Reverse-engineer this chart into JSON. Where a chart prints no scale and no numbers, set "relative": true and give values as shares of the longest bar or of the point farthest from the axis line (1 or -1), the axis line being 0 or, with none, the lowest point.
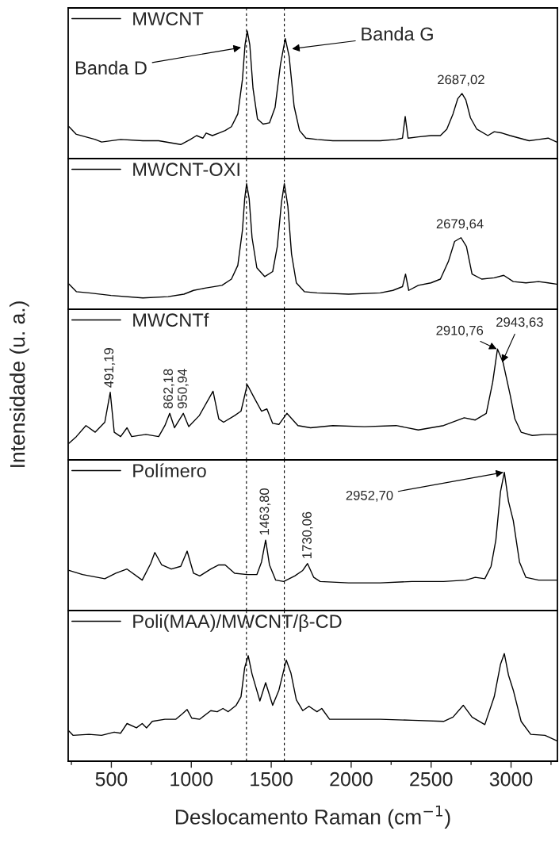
{
  "chart_data": [
    {
      "type": "line",
      "relative": true,
      "legend": "top left",
      "tick_labels": false,
      "xlim": [
        230,
        3290
      ],
      "xticks": [
        {
          "value": 250,
          "label": null
        },
        500,
        {
          "value": 750,
          "label": null
        },
        1000,
        {
          "value": 1250,
          "label": null
        },
        1500,
        {
          "value": 1750,
          "label": null
        },
        2000,
        {
          "value": 2250,
          "label": null
        },
        2500,
        {
          "value": 2750,
          "label": null
        },
        3000,
        {
          "value": 3250,
          "label": null
        }
      ],
      "ref_lines": [
        {
          "axis": "x",
          "value": 1345,
          "line_style": "dashed"
        },
        {
          "axis": "x",
          "value": 1582,
          "line_style": "dashed"
        }
      ],
      "annotations": [
        {
          "text": "Banda D",
          "x": 1311,
          "y": 0.87
        },
        {
          "text": "Banda G",
          "x": 1630,
          "y": 0.86
        },
        {
          "text": "2687,02",
          "x": 2687,
          "y": 0.51
        }
      ],
      "series": [
        {
          "name": "MWCNT",
          "color": "#000000",
          "x": [
            235,
            281,
            399,
            439,
            558,
            697,
            796,
            934,
            994,
            1033,
            1073,
            1093,
            1132,
            1172,
            1212,
            1251,
            1291,
            1320,
            1336,
            1350,
            1366,
            1386,
            1414,
            1449,
            1489,
            1524,
            1558,
            1588,
            1612,
            1643,
            1677,
            1717,
            1786,
            1885,
            1984,
            2083,
            2182,
            2281,
            2321,
            2338,
            2356,
            2420,
            2499,
            2558,
            2598,
            2637,
            2667,
            2693,
            2717,
            2746,
            2786,
            2855,
            2895,
            2944,
            2994,
            3053,
            3113,
            3172,
            3232,
            3285
          ],
          "values": [
            0.25,
            0.19,
            0.15,
            0.13,
            0.15,
            0.14,
            0.14,
            0.11,
            0.15,
            0.18,
            0.16,
            0.2,
            0.18,
            0.2,
            0.22,
            0.25,
            0.35,
            0.62,
            0.89,
            1.0,
            0.89,
            0.55,
            0.31,
            0.27,
            0.28,
            0.4,
            0.74,
            0.94,
            0.8,
            0.41,
            0.22,
            0.16,
            0.15,
            0.14,
            0.14,
            0.14,
            0.14,
            0.15,
            0.16,
            0.33,
            0.16,
            0.17,
            0.18,
            0.18,
            0.23,
            0.35,
            0.47,
            0.51,
            0.46,
            0.32,
            0.23,
            0.18,
            0.21,
            0.2,
            0.18,
            0.16,
            0.14,
            0.15,
            0.16,
            0.13
          ]
        }
      ]
    },
    {
      "type": "line",
      "relative": true,
      "legend": "top left",
      "tick_labels": false,
      "xlim": [
        230,
        3290
      ],
      "xticks": [
        {
          "value": 250,
          "label": null
        },
        500,
        {
          "value": 750,
          "label": null
        },
        1000,
        {
          "value": 1250,
          "label": null
        },
        1500,
        {
          "value": 1750,
          "label": null
        },
        2000,
        {
          "value": 2250,
          "label": null
        },
        2500,
        {
          "value": 2750,
          "label": null
        },
        3000,
        {
          "value": 3250,
          "label": null
        }
      ],
      "ref_lines": [
        {
          "axis": "x",
          "value": 1345,
          "line_style": "dashed"
        },
        {
          "axis": "x",
          "value": 1582,
          "line_style": "dashed"
        }
      ],
      "annotations": [
        {
          "text": "2679,64",
          "x": 2680,
          "y": 0.57
        }
      ],
      "series": [
        {
          "name": "MWCNT-OXI",
          "color": "#000000",
          "x": [
            235,
            281,
            360,
            498,
            697,
            855,
            954,
            1014,
            1093,
            1192,
            1251,
            1291,
            1320,
            1334,
            1346,
            1362,
            1380,
            1410,
            1459,
            1509,
            1538,
            1564,
            1582,
            1604,
            1627,
            1657,
            1707,
            1786,
            1984,
            2182,
            2261,
            2321,
            2340,
            2360,
            2420,
            2499,
            2558,
            2608,
            2647,
            2687,
            2721,
            2756,
            2816,
            2895,
            2954,
            3014,
            3093,
            3172,
            3232,
            3285
          ],
          "values": [
            0.2,
            0.14,
            0.13,
            0.11,
            0.09,
            0.1,
            0.12,
            0.15,
            0.17,
            0.19,
            0.24,
            0.35,
            0.63,
            0.88,
            1.0,
            0.88,
            0.57,
            0.33,
            0.26,
            0.3,
            0.5,
            0.85,
            1.0,
            0.82,
            0.44,
            0.21,
            0.14,
            0.13,
            0.12,
            0.13,
            0.15,
            0.18,
            0.28,
            0.15,
            0.19,
            0.21,
            0.24,
            0.38,
            0.54,
            0.57,
            0.5,
            0.28,
            0.24,
            0.25,
            0.27,
            0.22,
            0.21,
            0.22,
            0.21,
            0.2
          ]
        }
      ]
    },
    {
      "type": "line",
      "relative": true,
      "legend": "top left",
      "tick_labels": false,
      "xlim": [
        230,
        3290
      ],
      "ylabel": "Intensidade (u. a.)",
      "xticks": [
        {
          "value": 250,
          "label": null
        },
        500,
        {
          "value": 750,
          "label": null
        },
        1000,
        {
          "value": 1250,
          "label": null
        },
        1500,
        {
          "value": 1750,
          "label": null
        },
        2000,
        {
          "value": 2250,
          "label": null
        },
        2500,
        {
          "value": 2750,
          "label": null
        },
        3000,
        {
          "value": 3250,
          "label": null
        }
      ],
      "ref_lines": [
        {
          "axis": "x",
          "value": 1345,
          "line_style": "dashed"
        },
        {
          "axis": "x",
          "value": 1582,
          "line_style": "dashed"
        }
      ],
      "annotations": [
        {
          "text": "491,19",
          "x": 491.19,
          "y": 0.61
        },
        {
          "text": "862,18",
          "x": 862.18,
          "y": 0.42
        },
        {
          "text": "950,94",
          "x": 950.94,
          "y": 0.42
        },
        {
          "text": "2910,76",
          "x": 2910.76,
          "y": 1.0
        },
        {
          "text": "2943,63",
          "x": 2943.63,
          "y": 0.88
        }
      ],
      "series": [
        {
          "name": "MWCNTf",
          "color": "#000000",
          "x": [
            235,
            281,
            341,
            399,
            459,
            493,
            518,
            558,
            598,
            627,
            716,
            796,
            835,
            865,
            895,
            950,
            984,
            1050,
            1136,
            1172,
            1202,
            1271,
            1311,
            1350,
            1390,
            1439,
            1473,
            1509,
            1548,
            1598,
            1667,
            1746,
            1885,
            2083,
            2281,
            2420,
            2578,
            2707,
            2776,
            2845,
            2885,
            2915,
            2950,
            2994,
            3024,
            3063,
            3133,
            3212,
            3285
          ],
          "values": [
            0.15,
            0.21,
            0.31,
            0.25,
            0.34,
            0.61,
            0.25,
            0.21,
            0.29,
            0.21,
            0.23,
            0.21,
            0.31,
            0.42,
            0.29,
            0.42,
            0.3,
            0.4,
            0.62,
            0.37,
            0.34,
            0.4,
            0.44,
            0.68,
            0.57,
            0.44,
            0.46,
            0.33,
            0.32,
            0.42,
            0.31,
            0.29,
            0.31,
            0.3,
            0.31,
            0.27,
            0.31,
            0.38,
            0.36,
            0.42,
            0.7,
            1.0,
            0.88,
            0.59,
            0.37,
            0.25,
            0.22,
            0.23,
            0.23
          ]
        }
      ]
    },
    {
      "type": "line",
      "relative": true,
      "legend": "top left",
      "tick_labels": false,
      "xlim": [
        230,
        3290
      ],
      "xticks": [
        {
          "value": 250,
          "label": null
        },
        500,
        {
          "value": 750,
          "label": null
        },
        1000,
        {
          "value": 1250,
          "label": null
        },
        1500,
        {
          "value": 1750,
          "label": null
        },
        2000,
        {
          "value": 2250,
          "label": null
        },
        2500,
        {
          "value": 2750,
          "label": null
        },
        3000,
        {
          "value": 3250,
          "label": null
        }
      ],
      "ref_lines": [
        {
          "axis": "x",
          "value": 1345,
          "line_style": "dashed"
        },
        {
          "axis": "x",
          "value": 1582,
          "line_style": "dashed"
        }
      ],
      "annotations": [
        {
          "text": "1463,80",
          "x": 1463.8,
          "y": 0.51
        },
        {
          "text": "1730,06",
          "x": 1730.06,
          "y": 0.34
        },
        {
          "text": "2952,70",
          "x": 2952.7,
          "y": 1.0
        }
      ],
      "series": [
        {
          "name": "Polímero",
          "color": "#000000",
          "x": [
            235,
            320,
            459,
            528,
            598,
            693,
            746,
            772,
            815,
            875,
            934,
            974,
            1014,
            1053,
            1122,
            1172,
            1212,
            1271,
            1350,
            1410,
            1439,
            1465,
            1489,
            1528,
            1578,
            1647,
            1697,
            1727,
            1766,
            1806,
            1984,
            2182,
            2380,
            2578,
            2717,
            2776,
            2836,
            2875,
            2905,
            2934,
            2958,
            2984,
            3014,
            3053,
            3093,
            3172,
            3285
          ],
          "values": [
            0.29,
            0.26,
            0.23,
            0.27,
            0.3,
            0.22,
            0.34,
            0.42,
            0.33,
            0.3,
            0.32,
            0.43,
            0.27,
            0.25,
            0.3,
            0.33,
            0.33,
            0.27,
            0.26,
            0.26,
            0.35,
            0.51,
            0.33,
            0.22,
            0.21,
            0.25,
            0.29,
            0.34,
            0.24,
            0.21,
            0.2,
            0.2,
            0.21,
            0.21,
            0.22,
            0.24,
            0.23,
            0.32,
            0.51,
            0.86,
            1.0,
            0.79,
            0.65,
            0.35,
            0.24,
            0.22,
            0.22
          ]
        }
      ]
    },
    {
      "type": "line",
      "relative": true,
      "legend": "top left",
      "tick_labels": "x",
      "xlim": [
        230,
        3290
      ],
      "xlabel": "Deslocamento Raman (cm$^{−1}$)",
      "xticks": [
        {
          "value": 250,
          "label": null
        },
        500,
        {
          "value": 750,
          "label": null
        },
        1000,
        {
          "value": 1250,
          "label": null
        },
        1500,
        {
          "value": 1750,
          "label": null
        },
        2000,
        {
          "value": 2250,
          "label": null
        },
        2500,
        {
          "value": 2750,
          "label": null
        },
        3000,
        {
          "value": 3250,
          "label": null
        }
      ],
      "ref_lines": [
        {
          "axis": "x",
          "value": 1345,
          "line_style": "dashed"
        },
        {
          "axis": "x",
          "value": 1582,
          "line_style": "dashed"
        }
      ],
      "series": [
        {
          "name": "Poli(MAA)/MWCNT/β-CD",
          "color": "#000000",
          "x": [
            235,
            261,
            360,
            439,
            518,
            558,
            598,
            657,
            693,
            720,
            756,
            835,
            904,
            944,
            974,
            1003,
            1053,
            1122,
            1162,
            1198,
            1231,
            1281,
            1311,
            1334,
            1356,
            1380,
            1429,
            1465,
            1509,
            1548,
            1594,
            1623,
            1657,
            1697,
            1736,
            1786,
            1816,
            1865,
            1984,
            2182,
            2380,
            2578,
            2637,
            2701,
            2756,
            2836,
            2895,
            2934,
            2958,
            2984,
            3014,
            3063,
            3123,
            3212,
            3285
          ],
          "values": [
            0.28,
            0.24,
            0.25,
            0.24,
            0.27,
            0.26,
            0.35,
            0.31,
            0.35,
            0.31,
            0.37,
            0.39,
            0.39,
            0.44,
            0.48,
            0.4,
            0.39,
            0.47,
            0.46,
            0.49,
            0.46,
            0.52,
            0.6,
            0.87,
            0.98,
            0.81,
            0.56,
            0.73,
            0.52,
            0.66,
            0.94,
            0.82,
            0.57,
            0.47,
            0.51,
            0.46,
            0.49,
            0.39,
            0.39,
            0.39,
            0.38,
            0.37,
            0.41,
            0.52,
            0.41,
            0.34,
            0.6,
            0.9,
            1.0,
            0.8,
            0.66,
            0.37,
            0.25,
            0.24,
            0.19
          ]
        }
      ]
    }
  ]
}
